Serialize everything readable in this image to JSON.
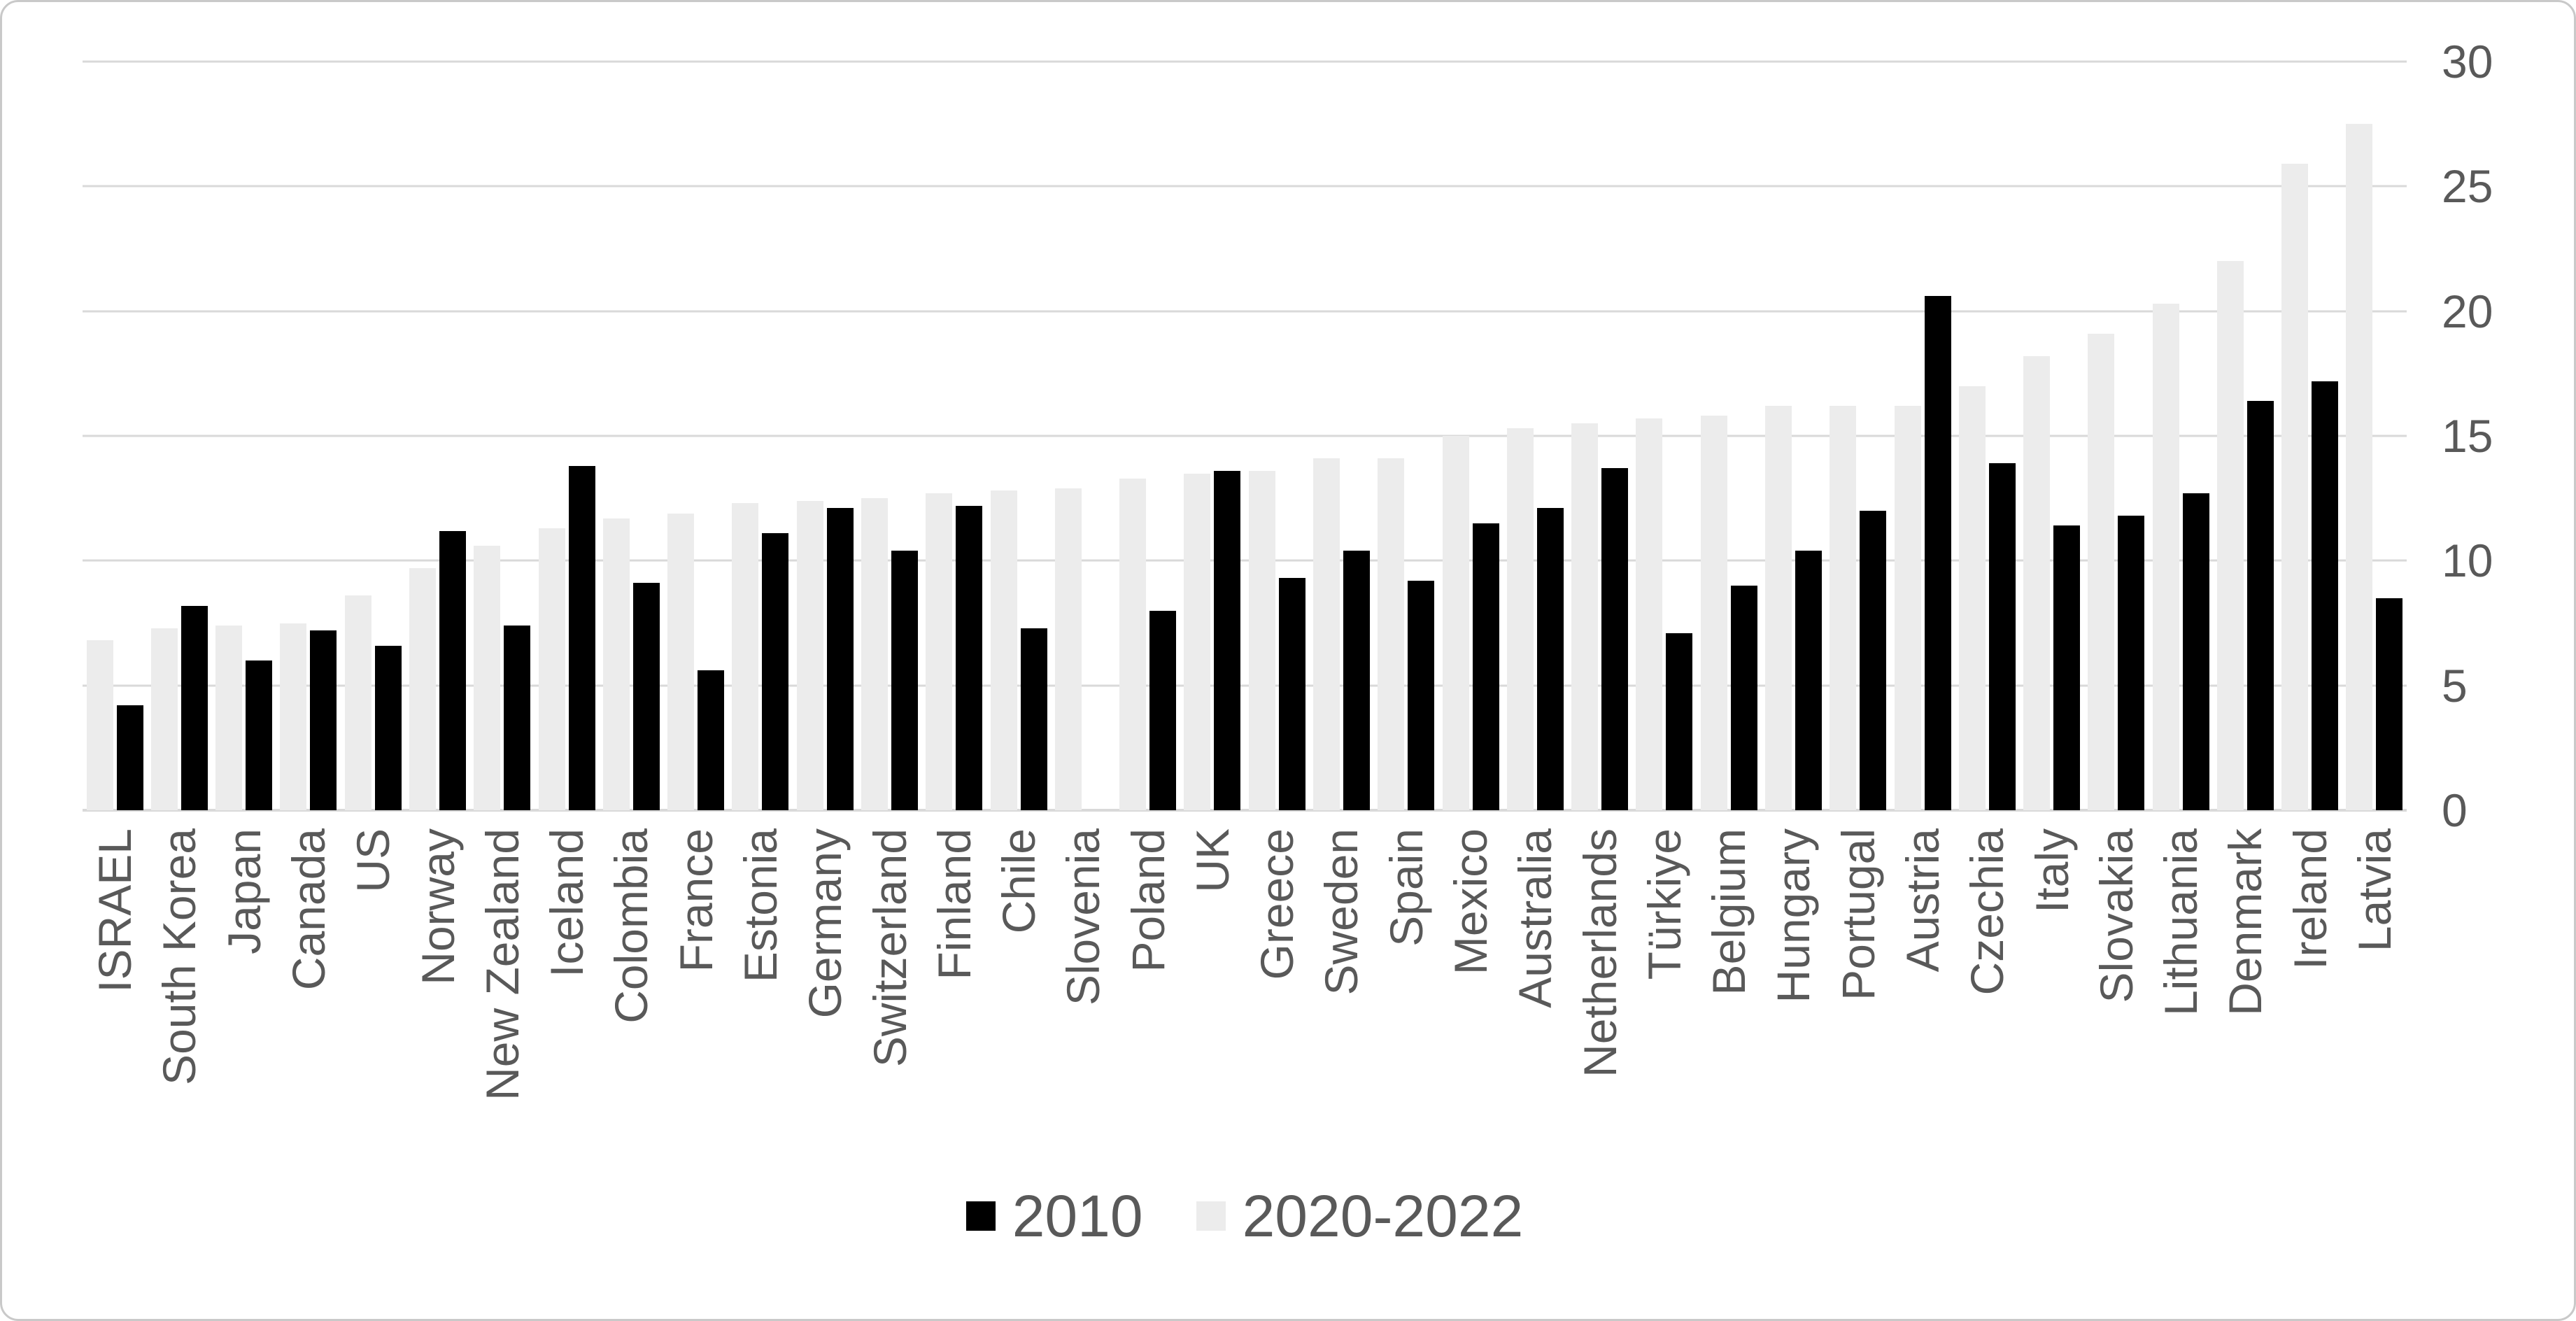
{
  "chart_data": {
    "type": "bar",
    "title": "",
    "categories": [
      "ISRAEL",
      "South Korea",
      "Japan",
      "Canada",
      "US",
      "Norway",
      "New Zealand",
      "Iceland",
      "Colombia",
      "France",
      "Estonia",
      "Germany",
      "Switzerland",
      "Finland",
      "Chile",
      "Slovenia",
      "Poland",
      "UK",
      "Greece",
      "Sweden",
      "Spain",
      "Mexico",
      "Australia",
      "Netherlands",
      "Türkiye",
      "Belgium",
      "Hungary",
      "Portugal",
      "Austria",
      "Czechia",
      "Italy",
      "Slovakia",
      "Lithuania",
      "Denmark",
      "Ireland",
      "Latvia"
    ],
    "series": [
      {
        "name": "2010",
        "color": "#000000",
        "values": [
          4.2,
          8.2,
          6.0,
          7.2,
          6.6,
          11.2,
          7.4,
          13.8,
          9.1,
          5.6,
          11.1,
          12.1,
          10.4,
          12.2,
          7.3,
          null,
          8.0,
          13.6,
          9.3,
          10.4,
          9.2,
          11.5,
          12.1,
          13.7,
          7.1,
          9.0,
          10.4,
          12.0,
          20.6,
          13.9,
          11.4,
          11.8,
          12.7,
          16.4,
          17.2,
          8.5
        ]
      },
      {
        "name": "2020-2022",
        "color": "#ececec",
        "values": [
          6.8,
          7.3,
          7.4,
          7.5,
          8.6,
          9.7,
          10.6,
          11.3,
          11.7,
          11.9,
          12.3,
          12.4,
          12.5,
          12.7,
          12.8,
          12.9,
          13.3,
          13.5,
          13.6,
          14.1,
          14.1,
          15.0,
          15.3,
          15.5,
          15.7,
          15.8,
          16.2,
          16.2,
          16.2,
          17.0,
          18.2,
          19.1,
          20.3,
          22.0,
          25.9,
          27.5
        ]
      }
    ],
    "xlabel": "",
    "ylabel": "",
    "ylim": [
      0,
      30
    ],
    "yticks": [
      "0",
      "5",
      "10",
      "15",
      "20",
      "25",
      "30"
    ],
    "y_axis_side": "right",
    "grid": "horizontal",
    "legend_position": "bottom",
    "bar_order_left_to_right": [
      "2020-2022",
      "2010"
    ]
  },
  "colors": {
    "background": "#ffffff",
    "border": "#c9c9c9",
    "gridline": "#d9d9d9",
    "text": "#595959",
    "bar_2010": "#000000",
    "bar_2020_2022": "#ececec"
  }
}
